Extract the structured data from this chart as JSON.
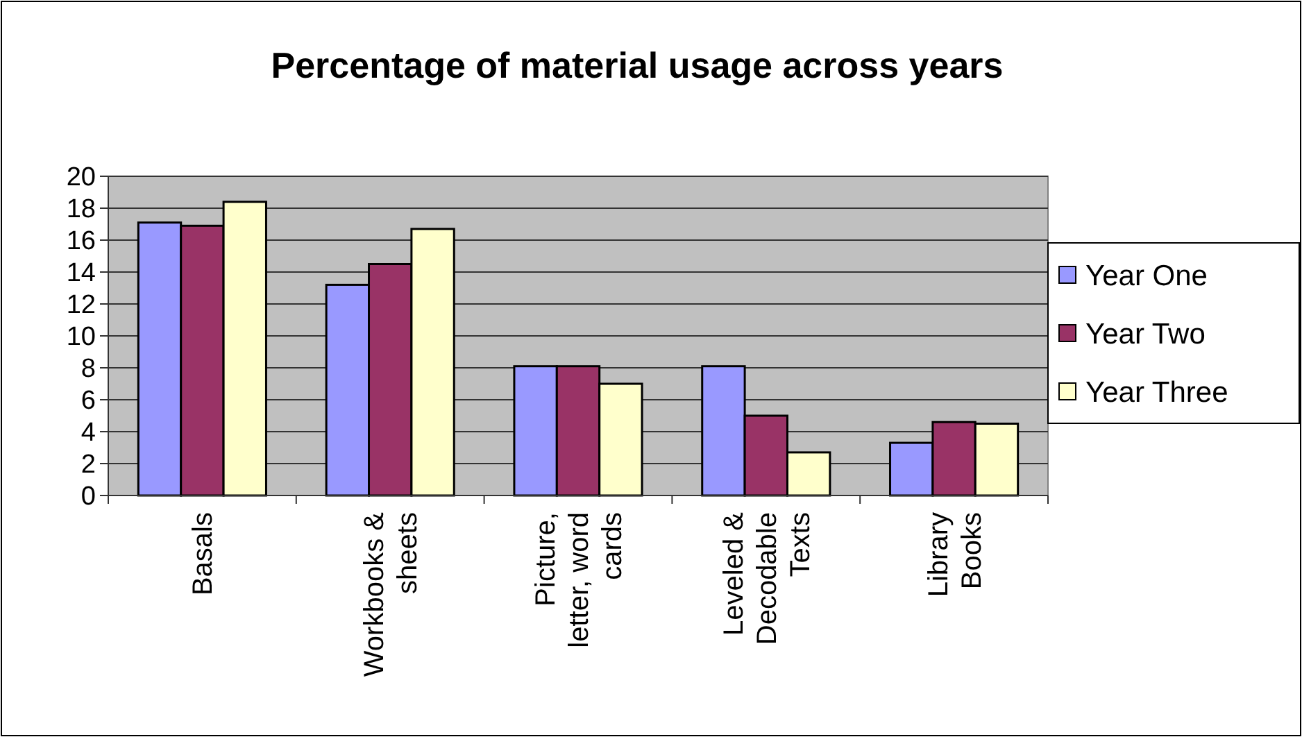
{
  "chart_data": {
    "type": "bar",
    "title": "Percentage of material usage across years",
    "categories": [
      "Basals",
      "Workbooks & sheets",
      "Picture, letter, word cards",
      "Leveled & Decodable Texts",
      "Library Books"
    ],
    "series": [
      {
        "name": "Year One",
        "color": "#9999ff",
        "values": [
          17.1,
          13.2,
          8.1,
          8.1,
          3.3
        ]
      },
      {
        "name": "Year Two",
        "color": "#993366",
        "values": [
          16.9,
          14.5,
          8.1,
          5.0,
          4.6
        ]
      },
      {
        "name": "Year Three",
        "color": "#ffffcc",
        "values": [
          18.4,
          16.7,
          7.0,
          2.7,
          4.5
        ]
      }
    ],
    "ylim": [
      0,
      20
    ],
    "yticks": [
      0,
      2,
      4,
      6,
      8,
      10,
      12,
      14,
      16,
      18,
      20
    ],
    "grid": "y",
    "legend": "right"
  }
}
